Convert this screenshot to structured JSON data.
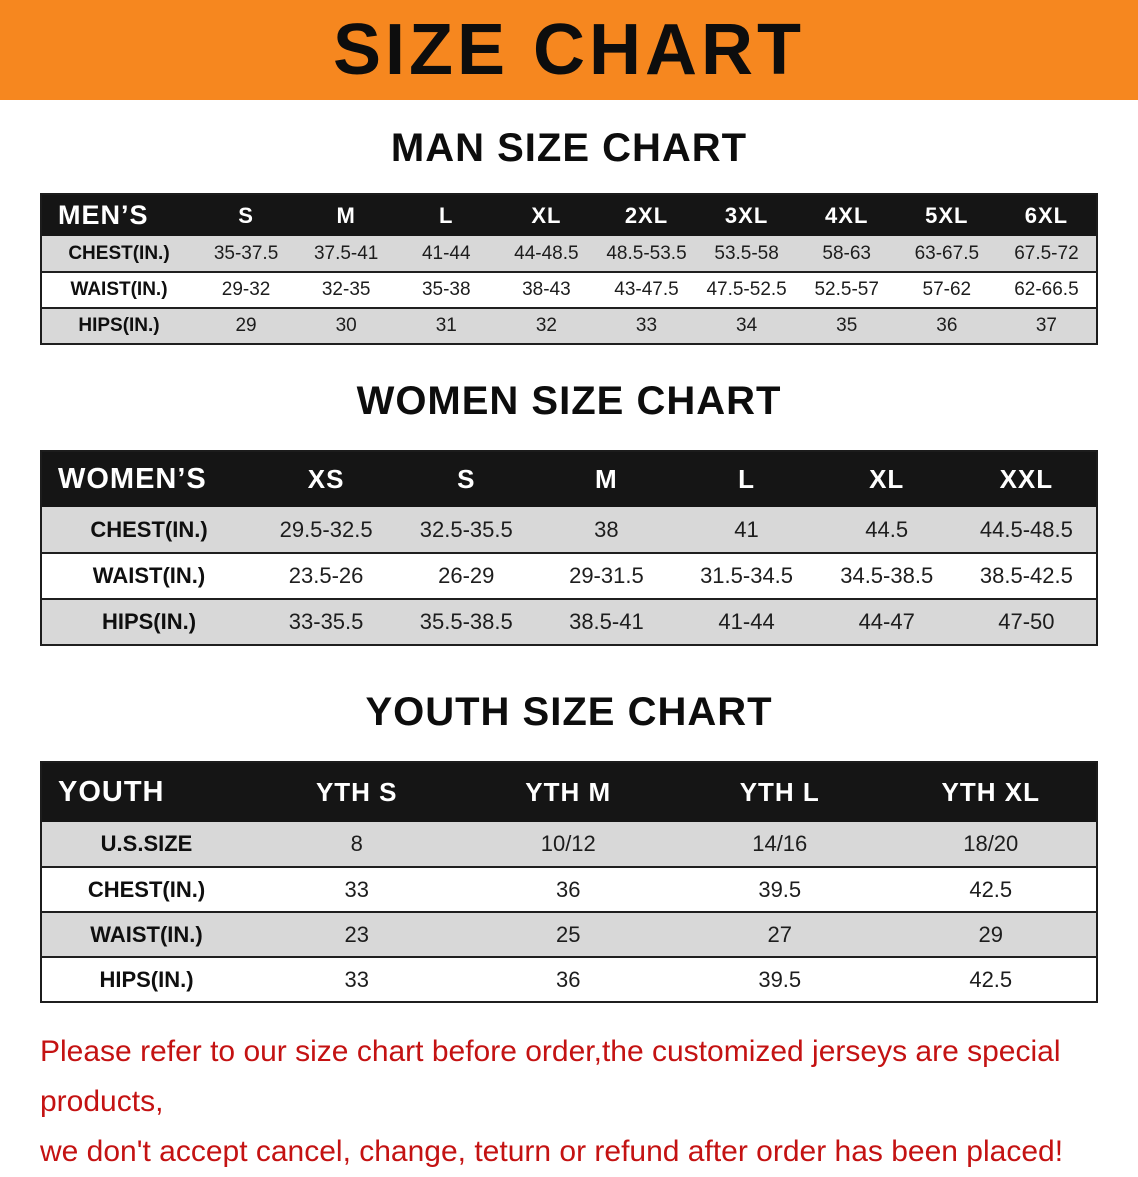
{
  "colors": {
    "banner_bg": "#F6871F",
    "table_header_bg": "#151515",
    "row_stripe": "#D8D8D8",
    "notice_red": "#C41212"
  },
  "banner": {
    "title": "SIZE CHART"
  },
  "sections": [
    {
      "heading": "MAN SIZE CHART",
      "table": {
        "header": {
          "label": "MEN’S",
          "columns": [
            "S",
            "M",
            "L",
            "XL",
            "2XL",
            "3XL",
            "4XL",
            "5XL",
            "6XL"
          ]
        },
        "rows": [
          {
            "label": "CHEST(IN.)",
            "values": [
              "35-37.5",
              "37.5-41",
              "41-44",
              "44-48.5",
              "48.5-53.5",
              "53.5-58",
              "58-63",
              "63-67.5",
              "67.5-72"
            ]
          },
          {
            "label": "WAIST(IN.)",
            "values": [
              "29-32",
              "32-35",
              "35-38",
              "38-43",
              "43-47.5",
              "47.5-52.5",
              "52.5-57",
              "57-62",
              "62-66.5"
            ]
          },
          {
            "label": "HIPS(IN.)",
            "values": [
              "29",
              "30",
              "31",
              "32",
              "33",
              "34",
              "35",
              "36",
              "37"
            ]
          }
        ]
      }
    },
    {
      "heading": "WOMEN SIZE CHART",
      "table": {
        "header": {
          "label": "WOMEN’S",
          "columns": [
            "XS",
            "S",
            "M",
            "L",
            "XL",
            "XXL"
          ]
        },
        "rows": [
          {
            "label": "CHEST(IN.)",
            "values": [
              "29.5-32.5",
              "32.5-35.5",
              "38",
              "41",
              "44.5",
              "44.5-48.5"
            ]
          },
          {
            "label": "WAIST(IN.)",
            "values": [
              "23.5-26",
              "26-29",
              "29-31.5",
              "31.5-34.5",
              "34.5-38.5",
              "38.5-42.5"
            ]
          },
          {
            "label": "HIPS(IN.)",
            "values": [
              "33-35.5",
              "35.5-38.5",
              "38.5-41",
              "41-44",
              "44-47",
              "47-50"
            ]
          }
        ]
      }
    },
    {
      "heading": "YOUTH SIZE CHART",
      "table": {
        "header": {
          "label": "YOUTH",
          "columns": [
            "YTH S",
            "YTH M",
            "YTH L",
            "YTH XL"
          ]
        },
        "rows": [
          {
            "label": "U.S.SIZE",
            "values": [
              "8",
              "10/12",
              "14/16",
              "18/20"
            ]
          },
          {
            "label": "CHEST(IN.)",
            "values": [
              "33",
              "36",
              "39.5",
              "42.5"
            ]
          },
          {
            "label": "WAIST(IN.)",
            "values": [
              "23",
              "25",
              "27",
              "29"
            ]
          },
          {
            "label": "HIPS(IN.)",
            "values": [
              "33",
              "36",
              "39.5",
              "42.5"
            ]
          }
        ]
      }
    }
  ],
  "footer": {
    "line1": "Please refer to our size chart before order,the customized jerseys are special products,",
    "line2": "we don't accept cancel, change, teturn or refund after order has been placed!"
  }
}
